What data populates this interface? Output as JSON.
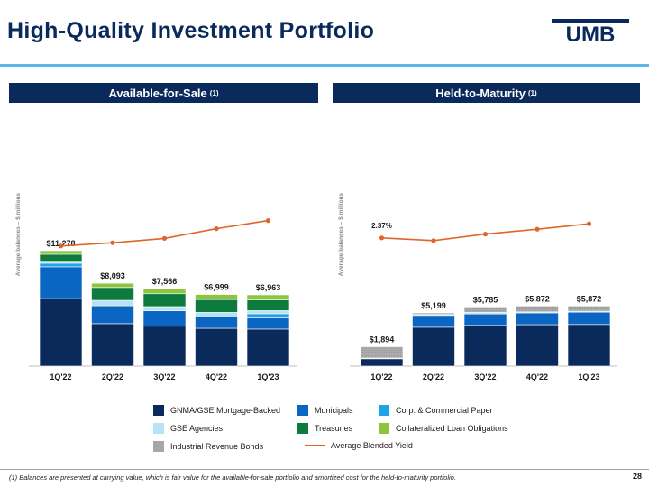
{
  "title": "High-Quality Investment Portfolio",
  "logo_text": "UMB",
  "banners": {
    "afs_label": "Available-for-Sale",
    "afs_note": "(1)",
    "htm_label": "Held-to-Maturity",
    "htm_note": "(1)"
  },
  "colors": {
    "navy": "#0a2a5c",
    "gnma": "#0a2a5c",
    "municipals": "#0b65c2",
    "corp": "#1fa4e6",
    "gse": "#b6e3f5",
    "treasuries": "#0d7a3e",
    "clo": "#8cc63f",
    "irb": "#a6a6a6",
    "yield_line": "#e0652a",
    "accent_rule": "#55b8e6"
  },
  "chart_data": [
    {
      "type": "bar",
      "stacked": true,
      "name": "Available-for-Sale",
      "ylabel": "Average balances – $ millions",
      "categories": [
        "1Q'22",
        "2Q'22",
        "3Q'22",
        "4Q'22",
        "1Q'23"
      ],
      "totals": [
        "$11,278",
        "$8,093",
        "$7,566",
        "$6,999",
        "$6,963"
      ],
      "total_values": [
        11278,
        8093,
        7566,
        6999,
        6963
      ],
      "series": [
        {
          "name": "GNMA/GSE Mortgage-Backed",
          "key": "gnma",
          "values": [
            6600,
            4150,
            3900,
            3700,
            3620
          ]
        },
        {
          "name": "Municipals",
          "key": "municipals",
          "values": [
            3100,
            1750,
            1500,
            1100,
            1100
          ]
        },
        {
          "name": "Corp. & Commercial Paper",
          "key": "corp",
          "values": [
            350,
            0,
            0,
            0,
            400
          ]
        },
        {
          "name": "GSE Agencies",
          "key": "gse",
          "values": [
            200,
            530,
            420,
            450,
            300
          ]
        },
        {
          "name": "Treasuries",
          "key": "treasuries",
          "values": [
            680,
            1250,
            1250,
            1250,
            1050
          ]
        },
        {
          "name": "Collateralized Loan Obligations",
          "key": "clo",
          "values": [
            348,
            413,
            496,
            499,
            493
          ]
        }
      ],
      "yield": {
        "name": "Average Blended Yield",
        "values": [
          2.22,
          2.28,
          2.36,
          2.54,
          2.69
        ],
        "labels": [
          "2.22%",
          "2.28%",
          "2.36%",
          "2.54%",
          "2.69%"
        ]
      },
      "ylim": [
        0,
        12000
      ],
      "yield_lim": [
        0,
        4.7
      ]
    },
    {
      "type": "bar",
      "stacked": true,
      "name": "Held-to-Maturity",
      "ylabel": "Average balances – $ millions",
      "categories": [
        "1Q'22",
        "2Q'22",
        "3Q'22",
        "4Q'22",
        "1Q'23"
      ],
      "totals": [
        "$1,894",
        "$5,199",
        "$5,785",
        "$5,872",
        "$5,872"
      ],
      "total_values": [
        1894,
        5199,
        5785,
        5872,
        5872
      ],
      "series": [
        {
          "name": "GNMA/GSE Mortgage-Backed",
          "key": "gnma",
          "values": [
            720,
            3800,
            3980,
            4050,
            4070
          ]
        },
        {
          "name": "Municipals",
          "key": "municipals",
          "values": [
            0,
            1150,
            1120,
            1150,
            1200
          ]
        },
        {
          "name": "GSE Agencies",
          "key": "gse",
          "values": [
            74,
            100,
            150,
            100,
            100
          ]
        },
        {
          "name": "Industrial Revenue Bonds",
          "key": "irb",
          "values": [
            1100,
            149,
            535,
            572,
            502
          ]
        }
      ],
      "yield": {
        "name": "Average Blended Yield",
        "values": [
          2.37,
          2.32,
          2.44,
          2.53,
          2.63
        ],
        "labels": [
          "2.37%",
          "2.32%",
          "2.44%",
          "2.53%",
          "2.63%"
        ]
      },
      "ylim": [
        0,
        12000
      ],
      "yield_lim": [
        0,
        4.7
      ]
    }
  ],
  "legend": [
    {
      "label": "GNMA/GSE Mortgage-Backed",
      "key": "gnma",
      "kind": "swatch"
    },
    {
      "label": "Municipals",
      "key": "municipals",
      "kind": "swatch"
    },
    {
      "label": "Corp. & Commercial Paper",
      "key": "corp",
      "kind": "swatch"
    },
    {
      "label": "GSE Agencies",
      "key": "gse",
      "kind": "swatch"
    },
    {
      "label": "Treasuries",
      "key": "treasuries",
      "kind": "swatch"
    },
    {
      "label": "Collateralized Loan Obligations",
      "key": "clo",
      "kind": "swatch"
    },
    {
      "label": "Industrial Revenue Bonds",
      "key": "irb",
      "kind": "swatch"
    },
    {
      "label": "Average Blended Yield",
      "key": "yield_line",
      "kind": "line"
    }
  ],
  "footnote": "(1) Balances are presented at carrying value, which is fair value for the available-for-sale portfolio and amortized cost for the held-to-maturity portfolio.",
  "page_number": "28"
}
